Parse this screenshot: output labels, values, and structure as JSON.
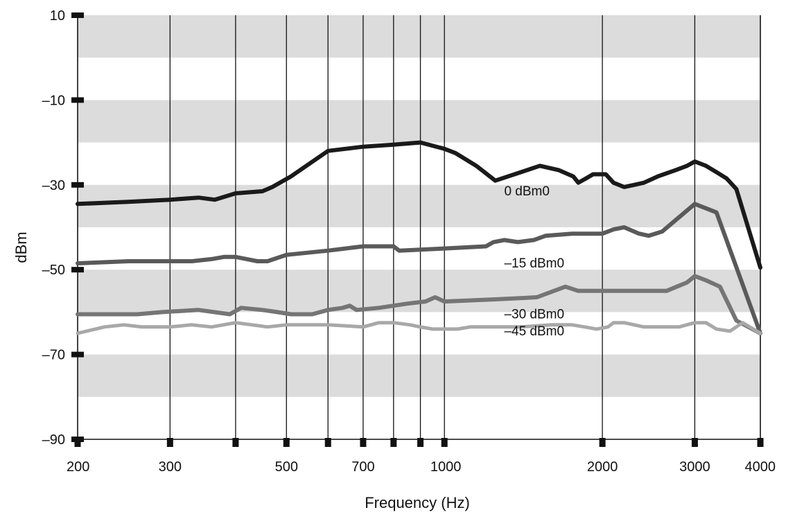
{
  "chart_data": {
    "type": "line",
    "title": "",
    "xlabel": "Frequency (Hz)",
    "ylabel": "dBm",
    "x_scale": "log",
    "xlim": [
      200,
      4000
    ],
    "ylim": [
      -90,
      10
    ],
    "x_ticks": [
      200,
      300,
      400,
      500,
      600,
      700,
      800,
      900,
      1000,
      2000,
      3000,
      4000
    ],
    "x_tick_labels": [
      "200",
      "300",
      "",
      "500",
      "",
      "700",
      "",
      "",
      "1000",
      "2000",
      "3000",
      "4000"
    ],
    "y_ticks": [
      10,
      -10,
      -30,
      -50,
      -70,
      -90
    ],
    "y_tick_labels": [
      "10",
      "–10",
      "–30",
      "–50",
      "–70",
      "–90"
    ],
    "bands": [
      [
        0,
        10
      ],
      [
        -20,
        -10
      ],
      [
        -40,
        -30
      ],
      [
        -60,
        -50
      ],
      [
        -80,
        -70
      ]
    ],
    "series": [
      {
        "name": "0 dBm0",
        "label": "0 dBm0",
        "color": "#1a1a1a",
        "x": [
          200,
          250,
          300,
          340,
          365,
          400,
          450,
          470,
          510,
          600,
          700,
          800,
          900,
          1000,
          1050,
          1150,
          1250,
          1400,
          1520,
          1650,
          1760,
          1800,
          1860,
          1920,
          2030,
          2100,
          2200,
          2300,
          2400,
          2550,
          2760,
          2900,
          3000,
          3150,
          3300,
          3450,
          3600,
          4000
        ],
        "y": [
          -34.5,
          -34,
          -33.5,
          -33,
          -33.5,
          -32,
          -31.5,
          -30.5,
          -28,
          -22,
          -21,
          -20.5,
          -20,
          -21.5,
          -22.5,
          -25.5,
          -29,
          -27,
          -25.5,
          -26.5,
          -28,
          -29.5,
          -28.5,
          -27.5,
          -27.5,
          -29.5,
          -30.5,
          -30,
          -29.5,
          -28,
          -26.5,
          -25.5,
          -24.5,
          -25.5,
          -27,
          -28.5,
          -31,
          -49.5
        ]
      },
      {
        "name": "–15 dBm0",
        "label": "–15 dBm0",
        "color": "#5a5a5a",
        "x": [
          200,
          250,
          300,
          330,
          360,
          380,
          400,
          420,
          440,
          460,
          500,
          600,
          700,
          800,
          820,
          1000,
          1200,
          1240,
          1300,
          1380,
          1480,
          1560,
          1750,
          2000,
          2100,
          2200,
          2350,
          2450,
          2600,
          3000,
          3300,
          4000
        ],
        "y": [
          -48.5,
          -48,
          -48,
          -48,
          -47.5,
          -47,
          -47,
          -47.5,
          -48,
          -48,
          -46.5,
          -45.5,
          -44.5,
          -44.5,
          -45.5,
          -45,
          -44.5,
          -43.5,
          -43,
          -43.5,
          -43,
          -42,
          -41.5,
          -41.5,
          -40.5,
          -40,
          -41.5,
          -42,
          -41,
          -34.5,
          -36.5,
          -65
        ]
      },
      {
        "name": "–30 dBm0",
        "label": "–30 dBm0",
        "color": "#757575",
        "x": [
          200,
          260,
          290,
          340,
          390,
          410,
          450,
          480,
          510,
          560,
          600,
          640,
          660,
          680,
          750,
          850,
          920,
          960,
          1000,
          1250,
          1500,
          1700,
          1800,
          2000,
          2500,
          2650,
          2900,
          3000,
          3150,
          3350,
          3600,
          4000
        ],
        "y": [
          -60.5,
          -60.5,
          -60,
          -59.5,
          -60.5,
          -59,
          -59.5,
          -60,
          -60.5,
          -60.5,
          -59.5,
          -59,
          -58.5,
          -59.5,
          -59,
          -58,
          -57.5,
          -56.5,
          -57.5,
          -57,
          -56.5,
          -54,
          -55,
          -55,
          -55,
          -55,
          -53,
          -51.5,
          -52.5,
          -54,
          -62,
          -65
        ]
      },
      {
        "name": "–45 dBm0",
        "label": "–45 dBm0",
        "color": "#a8a8a8",
        "x": [
          200,
          225,
          245,
          265,
          300,
          330,
          360,
          400,
          430,
          460,
          500,
          600,
          700,
          750,
          800,
          860,
          900,
          950,
          1000,
          1060,
          1120,
          1200,
          1400,
          1600,
          1750,
          1850,
          1950,
          2050,
          2100,
          2200,
          2400,
          2800,
          3000,
          3150,
          3300,
          3500,
          3700,
          4000
        ],
        "y": [
          -65,
          -63.5,
          -63,
          -63.5,
          -63.5,
          -63,
          -63.5,
          -62.5,
          -63,
          -63.5,
          -63,
          -63,
          -63.5,
          -62.5,
          -62.5,
          -63,
          -63.5,
          -64,
          -64,
          -64,
          -63.5,
          -63.5,
          -63.5,
          -63,
          -63,
          -63.5,
          -64,
          -63.5,
          -62.5,
          -62.5,
          -63.5,
          -63.5,
          -62.5,
          -62.5,
          -64,
          -64.5,
          -62.5,
          -65
        ]
      }
    ]
  }
}
